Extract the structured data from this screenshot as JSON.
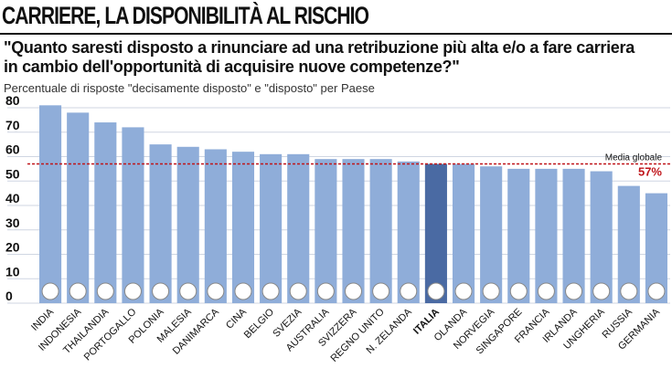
{
  "header": {
    "title": "CARRIERE, LA DISPONIBILITÀ AL RISCHIO",
    "question_line1": "\"Quanto saresti disposto a rinunciare ad una retribuzione più alta e/o a fare carriera",
    "question_line2": "in cambio dell'opportunità di acquisire nuove competenze?\"",
    "subtitle": "Percentuale di risposte \"decisamente disposto\" e \"disposto\" per Paese"
  },
  "colors": {
    "bar": "#8fadd9",
    "bar_highlight": "#4a6aa3",
    "grid": "#cfd6e2",
    "avg_line": "#c0161b"
  },
  "chart_data": {
    "type": "bar",
    "ylim": [
      0,
      80
    ],
    "yticks": [
      0,
      10,
      20,
      30,
      40,
      50,
      60,
      70,
      80
    ],
    "grid": true,
    "categories": [
      "INDIA",
      "INDONESIA",
      "THAILANDIA",
      "PORTOGALLO",
      "POLONIA",
      "MALESIA",
      "DANIMARCA",
      "CINA",
      "BELGIO",
      "SVEZIA",
      "AUSTRALIA",
      "SVIZZERA",
      "REGNO UNITO",
      "N. ZELANDA",
      "ITALIA",
      "OLANDA",
      "NORVEGIA",
      "SINGAPORE",
      "FRANCIA",
      "IRLANDA",
      "UNGHERIA",
      "RUSSIA",
      "GERMANIA"
    ],
    "values": [
      81,
      78,
      74,
      72,
      65,
      64,
      63,
      62,
      61,
      61,
      59,
      59,
      59,
      58,
      57,
      57,
      56,
      55,
      55,
      55,
      54,
      48,
      45
    ],
    "highlight": "ITALIA",
    "reference_line": {
      "value": 57,
      "label": "Media globale",
      "value_label": "57%"
    }
  }
}
